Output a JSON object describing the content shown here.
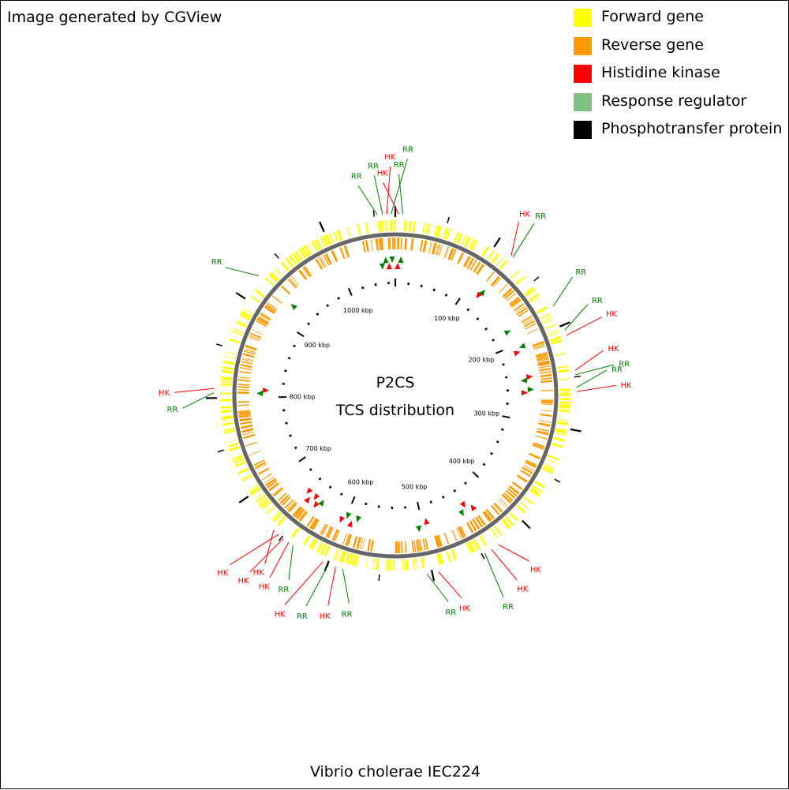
{
  "credit": "Image generated by CGView",
  "organism": "Vibrio cholerae IEC224",
  "center_title": "P2CS",
  "center_subtitle": "TCS distribution",
  "legend": [
    {
      "label": "Forward gene",
      "color": "#ffff00"
    },
    {
      "label": "Reverse gene",
      "color": "#ff9900"
    },
    {
      "label": "Histidine kinase",
      "color": "#ff0000"
    },
    {
      "label": "Response regulator",
      "color": "#80c080"
    },
    {
      "label": "Phosphotransfer protein",
      "color": "#000000"
    }
  ],
  "colors": {
    "forward": "#ffff00",
    "reverse": "#ff9900",
    "hk": "#ff0000",
    "rr": "#008000",
    "backbone": "#666666",
    "ticks": "#000000"
  },
  "genome": {
    "length_kbp": 1070,
    "tick_labels": [
      "100 kbp",
      "200 kbp",
      "300 kbp",
      "400 kbp",
      "500 kbp",
      "600 kbp",
      "700 kbp",
      "800 kbp",
      "900 kbp",
      "1000 kbp"
    ],
    "tick_values_kbp": [
      100,
      200,
      300,
      400,
      500,
      600,
      700,
      800,
      900,
      1000
    ]
  },
  "tcs_genes": [
    {
      "type": "RR",
      "label": "RR",
      "position_kbp": 1053
    },
    {
      "type": "RR",
      "label": "RR",
      "position_kbp": 1058
    },
    {
      "type": "HK",
      "label": "HK",
      "position_kbp": 1062
    },
    {
      "type": "RR",
      "label": "RR",
      "position_kbp": 1066
    },
    {
      "type": "HK",
      "label": "HK",
      "position_kbp": 3
    },
    {
      "type": "RR",
      "label": "RR",
      "position_kbp": 7
    },
    {
      "type": "HK",
      "label": "HK",
      "position_kbp": 118
    },
    {
      "type": "RR",
      "label": "RR",
      "position_kbp": 120
    },
    {
      "type": "RR",
      "label": "RR",
      "position_kbp": 180
    },
    {
      "type": "RR",
      "label": "RR",
      "position_kbp": 205
    },
    {
      "type": "HK",
      "label": "HK",
      "position_kbp": 210
    },
    {
      "type": "HK",
      "label": "HK",
      "position_kbp": 244
    },
    {
      "type": "RR",
      "label": "RR",
      "position_kbp": 248
    },
    {
      "type": "RR",
      "label": "RR",
      "position_kbp": 260
    },
    {
      "type": "HK",
      "label": "HK",
      "position_kbp": 264
    },
    {
      "type": "HK",
      "label": "HK",
      "position_kbp": 432
    },
    {
      "type": "HK",
      "label": "HK",
      "position_kbp": 440
    },
    {
      "type": "RR",
      "label": "RR",
      "position_kbp": 447
    },
    {
      "type": "HK",
      "label": "HK",
      "position_kbp": 494
    },
    {
      "type": "RR",
      "label": "RR",
      "position_kbp": 505
    },
    {
      "type": "RR",
      "label": "RR",
      "position_kbp": 585
    },
    {
      "type": "HK",
      "label": "HK",
      "position_kbp": 592
    },
    {
      "type": "RR",
      "label": "RR",
      "position_kbp": 599
    },
    {
      "type": "HK",
      "label": "HK",
      "position_kbp": 605
    },
    {
      "type": "RR",
      "label": "RR",
      "position_kbp": 637
    },
    {
      "type": "HK",
      "label": "HK",
      "position_kbp": 642
    },
    {
      "type": "HK",
      "label": "HK",
      "position_kbp": 648
    },
    {
      "type": "HK",
      "label": "HK",
      "position_kbp": 654
    },
    {
      "type": "HK",
      "label": "HK",
      "position_kbp": 660
    },
    {
      "type": "RR",
      "label": "RR",
      "position_kbp": 805
    },
    {
      "type": "HK",
      "label": "HK",
      "position_kbp": 809
    },
    {
      "type": "RR",
      "label": "RR",
      "position_kbp": 925
    }
  ]
}
